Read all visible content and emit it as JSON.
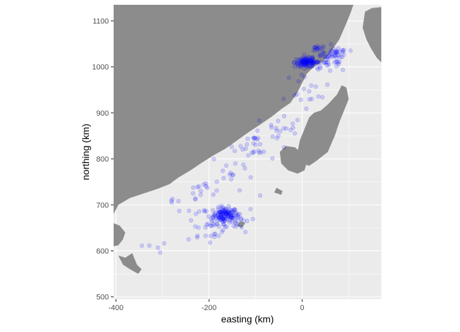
{
  "chart_data": {
    "type": "scatter",
    "xlabel": "easting (km)",
    "ylabel": "northing (km)",
    "xlim": [
      -405,
      170
    ],
    "ylim": [
      495,
      1135
    ],
    "xticks": [
      -400,
      -200,
      0
    ],
    "yticks": [
      500,
      600,
      700,
      800,
      900,
      1000,
      1100
    ],
    "grid": true,
    "point_color": "#0000ff",
    "point_alpha": 0.15,
    "land_color": "#8c8c8c",
    "panel_color": "#ebebeb",
    "clusters": [
      {
        "x": -165,
        "y": 678,
        "sx": 13,
        "sy": 8,
        "n": 110
      },
      {
        "x": -200,
        "y": 660,
        "sx": 28,
        "sy": 25,
        "n": 45
      },
      {
        "x": -140,
        "y": 670,
        "sx": 20,
        "sy": 14,
        "n": 25
      },
      {
        "x": -215,
        "y": 735,
        "sx": 14,
        "sy": 10,
        "n": 14
      },
      {
        "x": -150,
        "y": 770,
        "sx": 22,
        "sy": 25,
        "n": 18
      },
      {
        "x": -100,
        "y": 830,
        "sx": 22,
        "sy": 18,
        "n": 28
      },
      {
        "x": -40,
        "y": 880,
        "sx": 18,
        "sy": 14,
        "n": 14
      },
      {
        "x": 10,
        "y": 940,
        "sx": 25,
        "sy": 25,
        "n": 20
      },
      {
        "x": 10,
        "y": 1010,
        "sx": 13,
        "sy": 5,
        "n": 110
      },
      {
        "x": 55,
        "y": 1015,
        "sx": 22,
        "sy": 14,
        "n": 55
      },
      {
        "x": 75,
        "y": 1030,
        "sx": 12,
        "sy": 8,
        "n": 18
      },
      {
        "x": 32,
        "y": 1042,
        "sx": 4,
        "sy": 3,
        "n": 8
      },
      {
        "x": -310,
        "y": 605,
        "sx": 12,
        "sy": 6,
        "n": 5
      },
      {
        "x": -275,
        "y": 712,
        "sx": 6,
        "sy": 5,
        "n": 4
      }
    ],
    "land": [
      {
        "name": "mainland",
        "points": [
          [
            -405,
            630
          ],
          [
            -405,
            680
          ],
          [
            -395,
            700
          ],
          [
            -370,
            715
          ],
          [
            -340,
            725
          ],
          [
            -310,
            735
          ],
          [
            -285,
            745
          ],
          [
            -265,
            760
          ],
          [
            -240,
            775
          ],
          [
            -215,
            792
          ],
          [
            -190,
            808
          ],
          [
            -165,
            822
          ],
          [
            -140,
            840
          ],
          [
            -115,
            858
          ],
          [
            -88,
            876
          ],
          [
            -65,
            892
          ],
          [
            -45,
            908
          ],
          [
            -25,
            922
          ],
          [
            -10,
            945
          ],
          [
            0,
            965
          ],
          [
            10,
            985
          ],
          [
            25,
            1000
          ],
          [
            45,
            1012
          ],
          [
            60,
            1030
          ],
          [
            80,
            1060
          ],
          [
            95,
            1095
          ],
          [
            105,
            1120
          ],
          [
            110,
            1135
          ],
          [
            -405,
            1135
          ],
          [
            -405,
            1000
          ],
          [
            -375,
            995
          ],
          [
            -350,
            1000
          ],
          [
            -320,
            998
          ],
          [
            -295,
            1003
          ],
          [
            -280,
            995
          ],
          [
            -270,
            975
          ],
          [
            -260,
            958
          ],
          [
            -250,
            955
          ],
          [
            -242,
            962
          ],
          [
            -236,
            980
          ],
          [
            -230,
            1000
          ],
          [
            -215,
            1000
          ],
          [
            -190,
            995
          ],
          [
            -180,
            980
          ],
          [
            -170,
            958
          ],
          [
            -158,
            938
          ],
          [
            -140,
            910
          ],
          [
            -120,
            885
          ],
          [
            -100,
            875
          ],
          [
            -85,
            880
          ],
          [
            -70,
            900
          ],
          [
            -55,
            930
          ],
          [
            -45,
            960
          ],
          [
            -40,
            990
          ],
          [
            -25,
            1005
          ],
          [
            -10,
            1020
          ],
          [
            10,
            1040
          ],
          [
            30,
            1060
          ],
          [
            45,
            1080
          ],
          [
            75,
            1110
          ],
          [
            85,
            1120
          ],
          [
            75,
            1135
          ],
          [
            110,
            1135
          ],
          [
            115,
            1135
          ],
          [
            90,
            1135
          ],
          [
            -405,
            1135
          ]
        ]
      },
      {
        "name": "western-peninsula-tip",
        "points": [
          [
            -405,
            610
          ],
          [
            -395,
            612
          ],
          [
            -385,
            625
          ],
          [
            -380,
            640
          ],
          [
            -392,
            655
          ],
          [
            -405,
            660
          ]
        ]
      },
      {
        "name": "eastern-peninsula",
        "points": [
          [
            135,
            1120
          ],
          [
            150,
            1128
          ],
          [
            170,
            1130
          ],
          [
            170,
            1010
          ],
          [
            160,
            1020
          ],
          [
            148,
            1040
          ],
          [
            138,
            1060
          ],
          [
            130,
            1085
          ]
        ]
      },
      {
        "name": "island-large",
        "points": [
          [
            0,
            790
          ],
          [
            15,
            785
          ],
          [
            30,
            795
          ],
          [
            55,
            815
          ],
          [
            70,
            850
          ],
          [
            80,
            880
          ],
          [
            90,
            905
          ],
          [
            100,
            930
          ],
          [
            95,
            955
          ],
          [
            85,
            960
          ],
          [
            75,
            940
          ],
          [
            55,
            918
          ],
          [
            40,
            905
          ],
          [
            25,
            900
          ],
          [
            15,
            890
          ],
          [
            5,
            865
          ],
          [
            -5,
            840
          ],
          [
            -10,
            815
          ]
        ]
      },
      {
        "name": "island-south",
        "points": [
          [
            -45,
            790
          ],
          [
            -30,
            775
          ],
          [
            -10,
            768
          ],
          [
            5,
            775
          ],
          [
            10,
            792
          ],
          [
            0,
            810
          ],
          [
            -15,
            825
          ],
          [
            -35,
            828
          ],
          [
            -48,
            815
          ]
        ]
      },
      {
        "name": "island-small-1",
        "points": [
          [
            -60,
            727
          ],
          [
            -45,
            722
          ],
          [
            -42,
            730
          ],
          [
            -55,
            737
          ]
        ]
      },
      {
        "name": "island-small-2",
        "points": [
          [
            -140,
            655
          ],
          [
            -130,
            650
          ],
          [
            -122,
            660
          ],
          [
            -133,
            665
          ]
        ]
      },
      {
        "name": "islets-southwest",
        "points": [
          [
            -395,
            590
          ],
          [
            -380,
            585
          ],
          [
            -365,
            595
          ],
          [
            -355,
            570
          ],
          [
            -345,
            560
          ],
          [
            -352,
            550
          ],
          [
            -370,
            560
          ],
          [
            -385,
            570
          ]
        ]
      }
    ]
  }
}
